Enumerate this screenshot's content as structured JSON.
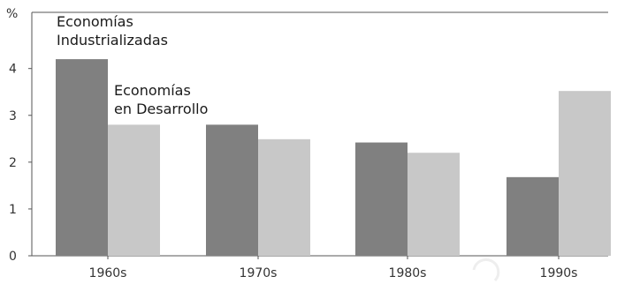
{
  "chart_data": {
    "type": "bar",
    "ylabel": "%",
    "categories": [
      "1960s",
      "1970s",
      "1980s",
      "1990s"
    ],
    "series": [
      {
        "name": "Economías Industrializadas",
        "values": [
          4.2,
          2.8,
          2.42,
          1.68
        ],
        "color": "#808080"
      },
      {
        "name": "Economías en Desarrollo",
        "values": [
          2.8,
          2.49,
          2.2,
          3.52
        ],
        "color": "#c8c8c8"
      }
    ],
    "yticks": [
      0,
      1,
      2,
      3,
      4
    ],
    "ylim": [
      0,
      5.2
    ],
    "grid": false,
    "legend": "inline annotations",
    "annotations": [
      {
        "lines": [
          "Economías",
          "Industrializadas"
        ],
        "series": 0
      },
      {
        "lines": [
          "Economías",
          "en Desarrollo"
        ],
        "series": 1
      }
    ]
  }
}
